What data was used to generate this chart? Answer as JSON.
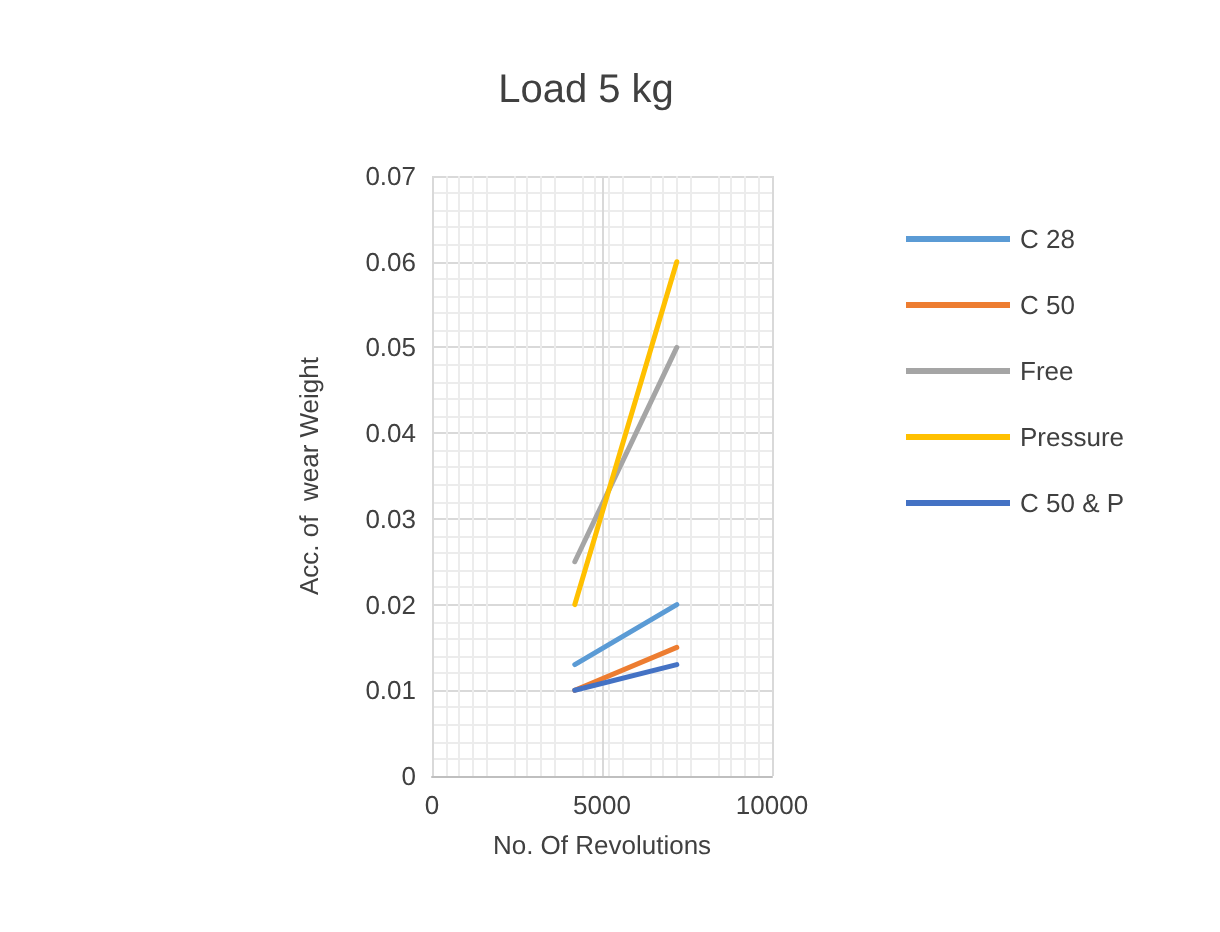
{
  "chart_data": {
    "type": "line",
    "title": "Load 5 kg",
    "xlabel": "No. Of Revolutions",
    "ylabel": "Acc. of  wear Weight",
    "x": [
      4200,
      7200
    ],
    "series": [
      {
        "name": "C 28",
        "color": "#5b9bd5",
        "values": [
          0.013,
          0.02
        ]
      },
      {
        "name": "C 50",
        "color": "#ed7d31",
        "values": [
          0.01,
          0.015
        ]
      },
      {
        "name": "Free",
        "color": "#a5a5a5",
        "values": [
          0.025,
          0.05
        ]
      },
      {
        "name": "Pressure",
        "color": "#ffc000",
        "values": [
          0.02,
          0.06
        ]
      },
      {
        "name": "C 50 & P",
        "color": "#4472c4",
        "values": [
          0.01,
          0.013
        ]
      }
    ],
    "xlim": [
      0,
      10000
    ],
    "xticks": [
      0,
      5000,
      10000
    ],
    "ylim": [
      0,
      0.07
    ],
    "yticks": [
      0,
      0.01,
      0.02,
      0.03,
      0.04,
      0.05,
      0.06,
      0.07
    ],
    "grid": true,
    "legend": "right",
    "marker": "none",
    "line_style": "solid"
  }
}
